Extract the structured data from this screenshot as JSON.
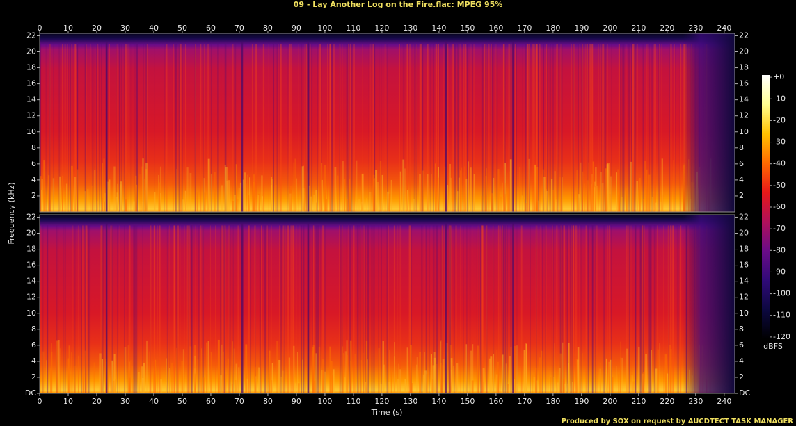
{
  "chart_data": {
    "type": "spectrogram",
    "title": "09 - Lay Another Log on the Fire.flac: MPEG 95%",
    "x_label": "Time (s)",
    "y_label": "Frequency (kHz)",
    "xlim": [
      0,
      243.7
    ],
    "xticks": [
      0,
      10,
      20,
      30,
      40,
      50,
      60,
      70,
      80,
      90,
      100,
      110,
      120,
      130,
      140,
      150,
      160,
      170,
      180,
      190,
      200,
      210,
      220,
      230,
      240
    ],
    "panels": [
      {
        "ylim": [
          0,
          22.3
        ],
        "yticks": [
          2,
          4,
          6,
          8,
          10,
          12,
          14,
          16,
          18,
          20,
          22
        ]
      },
      {
        "ylim": [
          0,
          22.3
        ],
        "yticks": [
          {
            "value": 0,
            "label": "DC"
          },
          2,
          4,
          6,
          8,
          10,
          12,
          14,
          16,
          18,
          20,
          22
        ]
      }
    ],
    "colorbar": {
      "label": "dBFS",
      "lim": [
        -121,
        1
      ],
      "ticks": [
        {
          "value": 0,
          "label": "+0"
        },
        -10,
        -20,
        -30,
        -40,
        -50,
        -60,
        -70,
        -80,
        -90,
        -100,
        -110,
        -120
      ],
      "colormap": [
        "#000000",
        "#0c0840",
        "#300a78",
        "#6a0c88",
        "#b0105a",
        "#e81818",
        "#ff6a00",
        "#ffc000",
        "#ffff90",
        "#ffffff"
      ]
    },
    "credit": "Produced by SOX on request by AUCDTECT TASK MANAGER"
  }
}
